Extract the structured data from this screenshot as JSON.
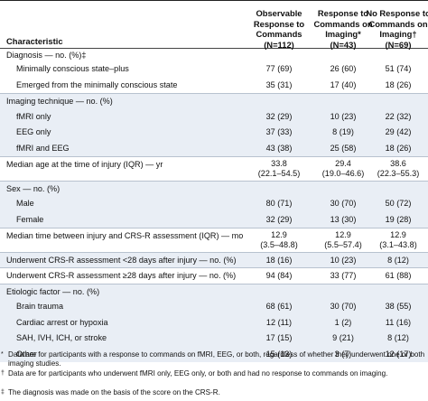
{
  "table": {
    "columns": [
      {
        "lines": [
          "Observable",
          "Response to",
          "Commands"
        ],
        "n": "(N=112)"
      },
      {
        "lines": [
          "Response to",
          "Commands on",
          "Imaging*"
        ],
        "n": "(N=43)"
      },
      {
        "lines": [
          "No Response to",
          "Commands on",
          "Imaging†"
        ],
        "n": "(N=69)"
      }
    ],
    "characteristic_label": "Characteristic",
    "rows": [
      {
        "label": "Diagnosis — no. (%)‡",
        "indent": false,
        "values": [
          "",
          "",
          ""
        ]
      },
      {
        "label": "Minimally conscious state–plus",
        "indent": true,
        "values": [
          "77 (69)",
          "26 (60)",
          "51 (74)"
        ]
      },
      {
        "label": "Emerged from the minimally conscious state",
        "indent": true,
        "values": [
          "35 (31)",
          "17 (40)",
          "18 (26)"
        ]
      },
      {
        "label": "Imaging technique — no. (%)",
        "indent": false,
        "values": [
          "",
          "",
          ""
        ]
      },
      {
        "label": "fMRI only",
        "indent": true,
        "values": [
          "32 (29)",
          "10 (23)",
          "22 (32)"
        ]
      },
      {
        "label": "EEG only",
        "indent": true,
        "values": [
          "37 (33)",
          "8 (19)",
          "29 (42)"
        ]
      },
      {
        "label": "fMRI and EEG",
        "indent": true,
        "values": [
          "43 (38)",
          "25 (58)",
          "18 (26)"
        ]
      },
      {
        "label": "Median age at the time of injury (IQR) — yr",
        "indent": false,
        "values": [
          "33.8",
          "29.4",
          "38.6"
        ],
        "values2": [
          "(22.1–54.5)",
          "(19.0–46.6)",
          "(22.3–55.3)"
        ]
      },
      {
        "label": "Sex — no. (%)",
        "indent": false,
        "values": [
          "",
          "",
          ""
        ]
      },
      {
        "label": "Male",
        "indent": true,
        "values": [
          "80 (71)",
          "30 (70)",
          "50 (72)"
        ]
      },
      {
        "label": "Female",
        "indent": true,
        "values": [
          "32 (29)",
          "13 (30)",
          "19 (28)"
        ]
      },
      {
        "label": "Median time between injury and CRS-R assessment (IQR) — mo",
        "indent": false,
        "values": [
          "12.9",
          "12.9",
          "12.9"
        ],
        "values2": [
          "(3.5–48.8)",
          "(5.5–57.4)",
          "(3.1–43.8)"
        ]
      },
      {
        "label": "Underwent CRS-R assessment <28 days after injury — no. (%)",
        "indent": false,
        "values": [
          "18 (16)",
          "10 (23)",
          "8 (12)"
        ]
      },
      {
        "label": "Underwent CRS-R assessment ≥28 days after injury — no. (%)",
        "indent": false,
        "values": [
          "94 (84)",
          "33 (77)",
          "61 (88)"
        ]
      },
      {
        "label": "Etiologic factor — no. (%)",
        "indent": false,
        "values": [
          "",
          "",
          ""
        ]
      },
      {
        "label": "Brain trauma",
        "indent": true,
        "values": [
          "68 (61)",
          "30 (70)",
          "38 (55)"
        ]
      },
      {
        "label": "Cardiac arrest or hypoxia",
        "indent": true,
        "values": [
          "12 (11)",
          "1 (2)",
          "11 (16)"
        ]
      },
      {
        "label": "SAH, IVH, ICH, or stroke",
        "indent": true,
        "values": [
          "17 (15)",
          "9 (21)",
          "8 (12)"
        ]
      },
      {
        "label": "Other",
        "indent": true,
        "values": [
          "15 (13)",
          "3 (7)",
          "12 (17)"
        ]
      }
    ]
  },
  "footnotes": [
    {
      "mark": "*",
      "text": "Data are for participants with a response to commands on fMRI, EEG, or both, regardless of whether they underwent one or both imaging studies."
    },
    {
      "mark": "†",
      "text": "Data are for participants who underwent fMRI only, EEG only, or both and had no response to commands on imaging."
    },
    {
      "mark": "‡",
      "text": "The diagnosis was made on the basis of the score on the CRS-R."
    }
  ]
}
